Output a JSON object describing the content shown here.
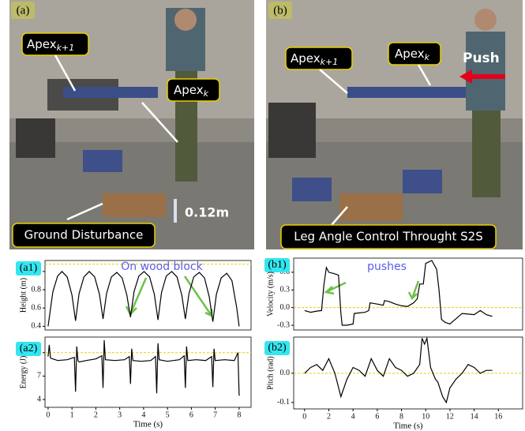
{
  "photos": [
    {
      "panel": "(a)",
      "apex_next": {
        "base": "Apex",
        "sub": "k+1"
      },
      "apex": {
        "base": "Apex",
        "sub": "k"
      },
      "caption": "Ground Disturbance",
      "height": "0.12m"
    },
    {
      "panel": "(b)",
      "apex_next": {
        "base": "Apex",
        "sub": "k+1"
      },
      "apex": {
        "base": "Apex",
        "sub": "k"
      },
      "push": "Push",
      "caption": "Leg Angle Control Throught S2S"
    }
  ],
  "chart_data": [
    {
      "type": "line",
      "panel": "(a1)",
      "ylabel": "Height (m)",
      "annotation": "On wood block",
      "color": "#000000",
      "x": [
        0,
        0.2,
        0.4,
        0.58,
        0.8,
        1.0,
        1.15,
        1.3,
        1.5,
        1.72,
        1.95,
        2.15,
        2.3,
        2.45,
        2.65,
        2.88,
        3.1,
        3.3,
        3.45,
        3.6,
        3.8,
        4.02,
        4.25,
        4.45,
        4.6,
        4.75,
        4.95,
        5.18,
        5.4,
        5.6,
        5.75,
        5.9,
        6.1,
        6.33,
        6.55,
        6.75,
        6.9,
        7.05,
        7.25,
        7.48,
        7.7,
        7.9,
        8.0
      ],
      "values": [
        0.4,
        0.78,
        0.95,
        1.0,
        0.94,
        0.74,
        0.46,
        0.76,
        0.94,
        1.0,
        0.94,
        0.75,
        0.48,
        0.76,
        0.94,
        0.99,
        0.93,
        0.74,
        0.5,
        0.78,
        0.95,
        1.0,
        0.94,
        0.75,
        0.47,
        0.77,
        0.95,
        1.0,
        0.94,
        0.74,
        0.48,
        0.76,
        0.94,
        0.99,
        0.93,
        0.72,
        0.45,
        0.75,
        0.93,
        0.98,
        0.9,
        0.6,
        0.4
      ],
      "xlim": [
        -0.13,
        8.5
      ],
      "ylim": [
        0.36,
        1.12
      ],
      "yticks": [
        0.4,
        0.6,
        0.8,
        {
          "value": 1,
          "label": "1.0"
        }
      ],
      "ref_line": {
        "value": 1.08,
        "color": "#e8d000"
      }
    },
    {
      "type": "line",
      "panel": "(a2)",
      "ylabel": "Energy (J)",
      "xlabel": "Time (s)",
      "color": "#000000",
      "x": [
        0,
        0.05,
        0.1,
        0.4,
        0.8,
        1.1,
        1.15,
        1.2,
        1.25,
        1.3,
        1.6,
        2.0,
        2.25,
        2.3,
        2.35,
        2.4,
        2.8,
        3.2,
        3.4,
        3.45,
        3.5,
        3.55,
        3.9,
        4.3,
        4.5,
        4.55,
        4.6,
        4.65,
        5.0,
        5.5,
        5.7,
        5.75,
        5.8,
        5.85,
        6.2,
        6.6,
        6.85,
        6.9,
        6.95,
        7.0,
        7.4,
        7.8,
        7.95,
        8.0,
        8.02
      ],
      "values": [
        9.5,
        11,
        9.3,
        9.0,
        9.1,
        9.4,
        5.0,
        10.8,
        9.0,
        8.8,
        9.0,
        9.2,
        9.6,
        5.5,
        11.6,
        9.1,
        9.0,
        9.1,
        9.5,
        6.0,
        10.5,
        9.0,
        8.9,
        9.0,
        9.5,
        4.8,
        11.2,
        9.1,
        8.9,
        9.1,
        9.6,
        5.5,
        10.8,
        9.0,
        9.1,
        9.0,
        9.5,
        5.6,
        10.5,
        9.0,
        9.1,
        9.0,
        10.0,
        4.6,
        4.5
      ],
      "xlim": [
        -0.13,
        8.5
      ],
      "ylim": [
        3,
        12
      ],
      "yticks": [
        4,
        7,
        10
      ],
      "xticks": [
        0,
        1,
        2,
        3,
        4,
        5,
        6,
        7,
        8
      ],
      "ref_line": {
        "value": 10,
        "color": "#e8d000"
      }
    },
    {
      "type": "line",
      "panel": "(b1)",
      "ylabel": "Velocity (m/s)",
      "annotation": "pushes",
      "color": "#000000",
      "x": [
        0,
        0.5,
        1.0,
        1.4,
        1.6,
        1.8,
        2.0,
        2.4,
        2.8,
        3.0,
        3.1,
        3.5,
        4.0,
        4.1,
        5.0,
        5.3,
        5.4,
        6.0,
        6.5,
        6.6,
        7.0,
        7.5,
        8.0,
        8.5,
        9.0,
        9.3,
        9.5,
        9.8,
        10.0,
        10.5,
        10.9,
        11.1,
        11.3,
        11.6,
        12.0,
        13.0,
        14.0,
        14.5,
        15.0,
        15.5
      ],
      "values": [
        -0.05,
        -0.08,
        -0.06,
        -0.05,
        0.4,
        0.68,
        0.6,
        0.58,
        0.55,
        -0.1,
        -0.3,
        -0.3,
        -0.28,
        -0.1,
        -0.08,
        -0.05,
        0.08,
        0.06,
        0.04,
        0.12,
        0.1,
        0.06,
        0.03,
        0.02,
        0.08,
        0.15,
        0.4,
        0.4,
        0.75,
        0.8,
        0.65,
        0.3,
        -0.2,
        -0.25,
        -0.28,
        -0.1,
        -0.12,
        -0.05,
        -0.12,
        -0.15
      ],
      "xlim": [
        -0.9,
        18
      ],
      "ylim": [
        -0.38,
        0.84
      ],
      "yticks": [
        -0.3,
        {
          "value": 0,
          "label": "0.0"
        },
        0.3,
        0.6
      ],
      "ref_line": {
        "value": 0,
        "color": "#e8d000"
      }
    },
    {
      "type": "line",
      "panel": "(b2)",
      "ylabel": "Pitch (rad)",
      "xlabel": "Time (s)",
      "color": "#000000",
      "x": [
        0,
        0.5,
        1.0,
        1.5,
        2.0,
        2.5,
        3.0,
        3.5,
        4.0,
        4.5,
        5.0,
        5.5,
        6.0,
        6.5,
        7.0,
        7.5,
        8.0,
        8.5,
        9.0,
        9.5,
        9.7,
        9.9,
        10.1,
        10.4,
        10.8,
        11.0,
        11.4,
        11.7,
        12.0,
        12.5,
        13.0,
        13.5,
        14.0,
        14.5,
        15.0,
        15.5
      ],
      "values": [
        0.0,
        0.02,
        0.03,
        0.01,
        0.05,
        0.0,
        -0.08,
        -0.02,
        0.02,
        0.01,
        -0.01,
        0.05,
        0.01,
        -0.01,
        0.05,
        0.02,
        0.01,
        -0.01,
        0.0,
        0.03,
        0.12,
        0.1,
        0.12,
        0.02,
        -0.02,
        -0.03,
        -0.08,
        -0.1,
        -0.05,
        -0.02,
        0.0,
        0.03,
        0.02,
        0.0,
        0.01,
        0.01
      ],
      "xlim": [
        -0.9,
        18
      ],
      "ylim": [
        -0.122,
        0.124
      ],
      "yticks": [
        -0.1,
        {
          "value": 0,
          "label": "0.0"
        }
      ],
      "xticks": [
        0,
        2,
        4,
        6,
        8,
        10,
        12,
        14,
        16
      ],
      "ref_line": {
        "value": 0,
        "color": "#e8d000"
      }
    }
  ]
}
